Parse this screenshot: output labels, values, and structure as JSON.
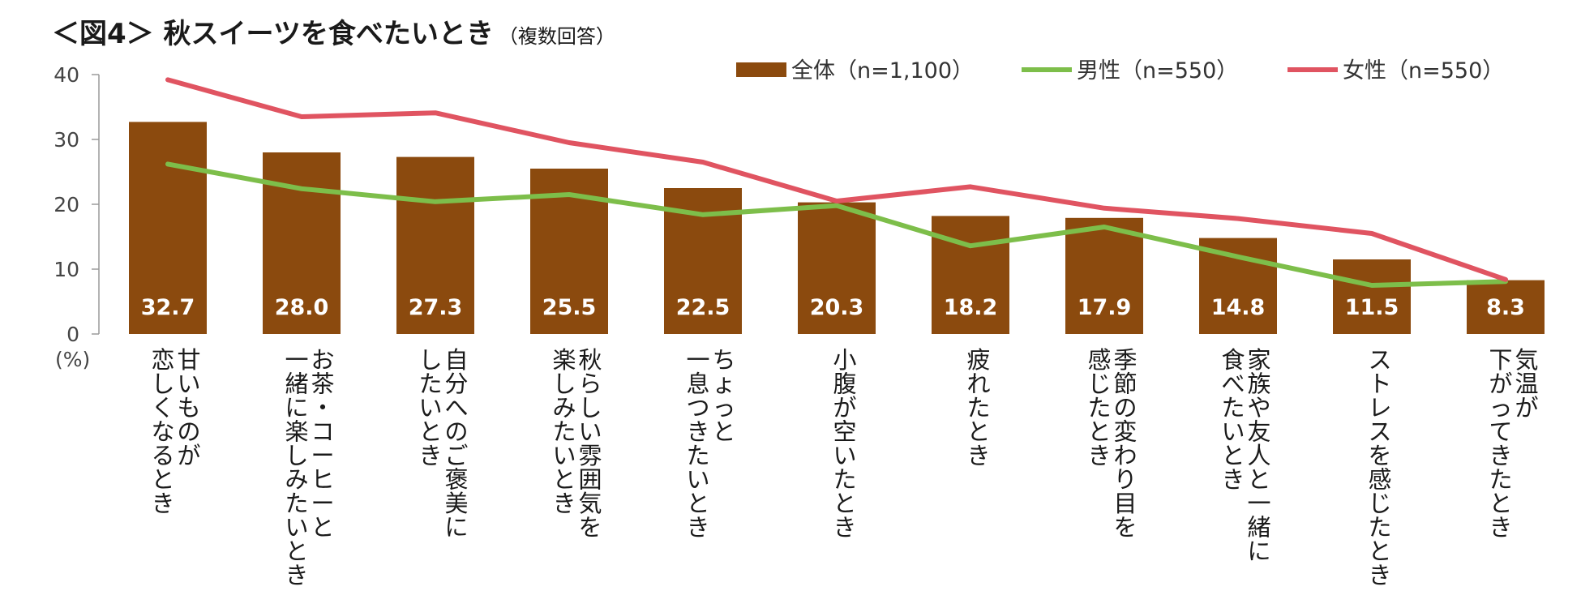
{
  "header": {
    "title": "＜図4＞ 秋スイーツを食べたいとき",
    "subtitle": "（複数回答）"
  },
  "chart_data": {
    "type": "bar",
    "title": "＜図4＞ 秋スイーツを食べたいとき",
    "subtitle": "（複数回答）",
    "ylabel": "(%)",
    "xlabel": "",
    "ylim": [
      0,
      40
    ],
    "yticks": [
      "0",
      "10",
      "20",
      "30",
      "40"
    ],
    "grid": false,
    "legend_position": "top-right",
    "categories": [
      [
        "甘いものが",
        "恋しくなるとき"
      ],
      [
        "お茶・コーヒーと",
        "一緒に楽しみたいとき"
      ],
      [
        "自分へのご褒美に",
        "したいとき"
      ],
      [
        "秋らしい雰囲気を",
        "楽しみたいとき"
      ],
      [
        "ちょっと",
        "一息つきたいとき"
      ],
      [
        "小腹が空いたとき"
      ],
      [
        "疲れたとき"
      ],
      [
        "季節の変わり目を",
        "感じたとき"
      ],
      [
        "家族や友人と一緒に",
        "食べたいとき"
      ],
      [
        "ストレスを感じたとき"
      ],
      [
        "気温が",
        "下がってきたとき"
      ]
    ],
    "series": [
      {
        "name": "全体（n=1,100）",
        "type": "bar",
        "color": "#8B4A0E",
        "values": [
          32.7,
          28.0,
          27.3,
          25.5,
          22.5,
          20.3,
          18.2,
          17.9,
          14.8,
          11.5,
          8.3
        ],
        "labels": [
          "32.7",
          "28.0",
          "27.3",
          "25.5",
          "22.5",
          "20.3",
          "18.2",
          "17.9",
          "14.8",
          "11.5",
          "8.3"
        ]
      },
      {
        "name": "男性（n=550）",
        "type": "line",
        "color": "#7DBE4A",
        "values": [
          26.2,
          22.4,
          20.4,
          21.5,
          18.4,
          19.8,
          13.6,
          16.5,
          11.9,
          7.5,
          8.1
        ]
      },
      {
        "name": "女性（n=550）",
        "type": "line",
        "color": "#E05461",
        "values": [
          39.2,
          33.5,
          34.1,
          29.5,
          26.5,
          20.5,
          22.7,
          19.4,
          17.8,
          15.5,
          8.4
        ]
      }
    ]
  }
}
